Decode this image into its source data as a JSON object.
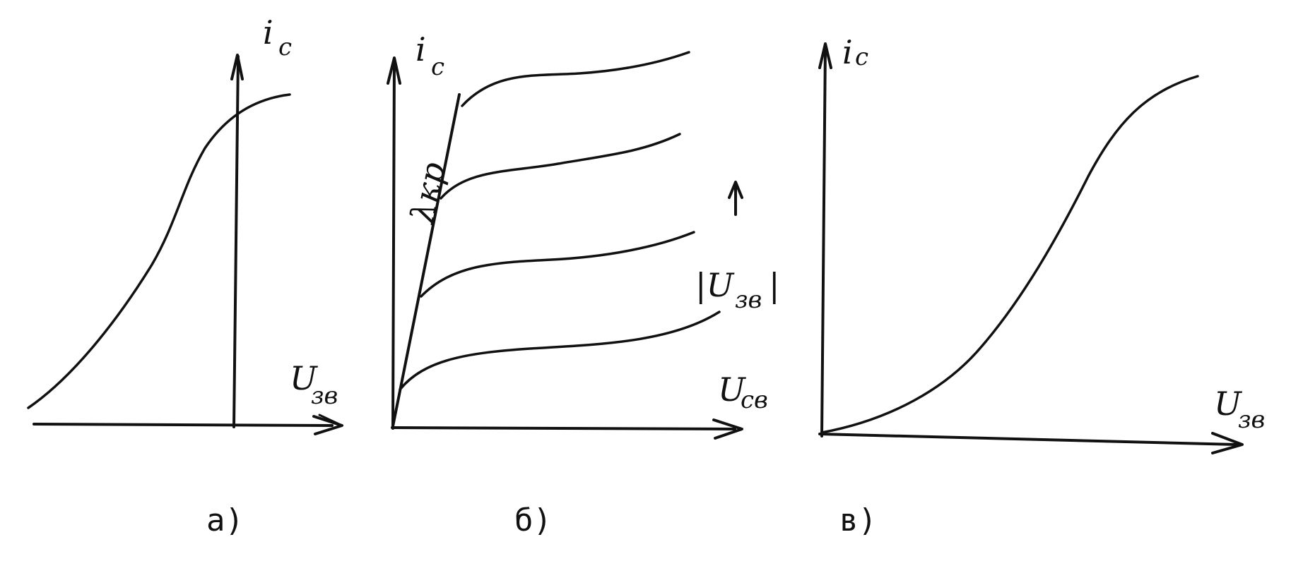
{
  "panel_a": {
    "y_axis_label": "i",
    "y_axis_label_sub": "c",
    "x_axis_label": "U",
    "x_axis_label_sub": "зв",
    "caption": "а)"
  },
  "panel_b": {
    "y_axis_label": "i",
    "y_axis_label_sub": "c",
    "x_axis_label": "U",
    "x_axis_label_sub": "св",
    "boundary_label": "λкр",
    "parameter_label": "|U",
    "parameter_label_sub": "зв",
    "parameter_label_end": "|",
    "caption": "б)"
  },
  "panel_c": {
    "y_axis_label": "i",
    "y_axis_label_sub": "c",
    "x_axis_label": "U",
    "x_axis_label_sub": "зв",
    "caption": "в)"
  },
  "colors": {
    "ink": "#111111",
    "paper": "#ffffff"
  }
}
